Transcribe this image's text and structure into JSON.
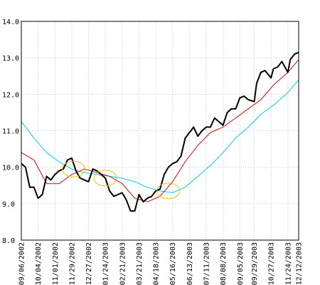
{
  "chart_data": {
    "type": "line",
    "title": "",
    "xlabel": "",
    "ylabel": "",
    "ylim": [
      8.0,
      14.0
    ],
    "y_ticks": [
      "8.0",
      "9.0",
      "10.0",
      "11.0",
      "12.0",
      "13.0",
      "14.0"
    ],
    "x_tick_labels": [
      "09/06/2002",
      "10/04/2002",
      "11/01/2002",
      "11/29/2002",
      "12/27/2002",
      "01/24/2003",
      "02/21/2003",
      "03/21/2003",
      "04/18/2003",
      "05/16/2003",
      "06/13/2003",
      "07/11/2003",
      "08/08/2003",
      "09/05/2003",
      "09/29/2003",
      "10/27/2003",
      "11/24/2003",
      "12/12/2003"
    ],
    "grid": true,
    "colors": {
      "price": "#000000",
      "ma_short": "#e00000",
      "ma_long": "#00d0e8",
      "highlight": "#f0c000",
      "grid": "#c8c8c8"
    },
    "series": [
      {
        "key": "price",
        "x": [
          "09/06/2002",
          "09/13/2002",
          "09/20/2002",
          "09/27/2002",
          "10/04/2002",
          "10/11/2002",
          "10/18/2002",
          "10/25/2002",
          "11/01/2002",
          "11/08/2002",
          "11/15/2002",
          "11/22/2002",
          "11/29/2002",
          "12/06/2002",
          "12/13/2002",
          "12/20/2002",
          "12/27/2002",
          "01/03/2003",
          "01/10/2003",
          "01/17/2003",
          "01/24/2003",
          "01/31/2003",
          "02/07/2003",
          "02/14/2003",
          "02/21/2003",
          "02/28/2003",
          "03/07/2003",
          "03/14/2003",
          "03/21/2003",
          "03/28/2003",
          "04/04/2003",
          "04/11/2003",
          "04/18/2003",
          "04/25/2003",
          "05/02/2003",
          "05/09/2003",
          "05/16/2003",
          "05/23/2003",
          "05/30/2003",
          "06/06/2003",
          "06/13/2003",
          "06/20/2003",
          "06/27/2003",
          "07/04/2003",
          "07/11/2003",
          "07/18/2003",
          "07/25/2003",
          "08/01/2003",
          "08/08/2003",
          "08/15/2003",
          "08/22/2003",
          "08/29/2003",
          "09/05/2003",
          "09/12/2003",
          "09/19/2003",
          "09/29/2003",
          "10/03/2003",
          "10/10/2003",
          "10/17/2003",
          "10/27/2003",
          "10/31/2003",
          "11/07/2003",
          "11/14/2003",
          "11/24/2003",
          "11/28/2003",
          "12/05/2003",
          "12/12/2003"
        ],
        "values": [
          10.1,
          10.0,
          9.45,
          9.45,
          9.15,
          9.25,
          9.75,
          9.65,
          9.8,
          9.9,
          9.95,
          10.2,
          10.25,
          9.9,
          9.7,
          9.65,
          9.6,
          9.95,
          9.9,
          9.8,
          9.7,
          9.35,
          9.2,
          9.25,
          9.3,
          9.1,
          8.8,
          8.8,
          9.25,
          9.05,
          9.15,
          9.2,
          9.35,
          9.4,
          9.8,
          10.0,
          10.1,
          10.15,
          10.3,
          10.8,
          10.95,
          11.1,
          10.85,
          11.0,
          11.1,
          11.1,
          11.35,
          11.25,
          11.15,
          11.5,
          11.6,
          11.6,
          11.9,
          11.95,
          11.85,
          11.8,
          12.3,
          12.6,
          12.65,
          12.45,
          12.7,
          12.75,
          12.9,
          12.6,
          12.95,
          13.1,
          13.15
        ]
      },
      {
        "key": "ma_short",
        "x": [
          "09/06/2002",
          "09/27/2002",
          "10/18/2002",
          "11/08/2002",
          "11/29/2002",
          "12/20/2002",
          "01/10/2003",
          "01/31/2003",
          "02/21/2003",
          "03/14/2003",
          "04/04/2003",
          "04/25/2003",
          "05/16/2003",
          "06/06/2003",
          "06/27/2003",
          "07/18/2003",
          "08/08/2003",
          "08/29/2003",
          "09/19/2003",
          "10/10/2003",
          "10/31/2003",
          "11/24/2003",
          "12/12/2003"
        ],
        "values": [
          10.4,
          10.2,
          9.55,
          9.55,
          9.8,
          9.95,
          9.85,
          9.75,
          9.55,
          9.15,
          9.05,
          9.2,
          9.6,
          10.15,
          10.6,
          10.95,
          11.1,
          11.35,
          11.6,
          11.85,
          12.25,
          12.6,
          12.95
        ]
      },
      {
        "key": "ma_long",
        "x": [
          "09/06/2002",
          "09/27/2002",
          "10/18/2002",
          "11/08/2002",
          "11/29/2002",
          "12/20/2002",
          "01/10/2003",
          "01/31/2003",
          "02/21/2003",
          "03/14/2003",
          "04/04/2003",
          "04/25/2003",
          "05/16/2003",
          "06/06/2003",
          "06/27/2003",
          "07/18/2003",
          "08/08/2003",
          "08/29/2003",
          "09/19/2003",
          "10/10/2003",
          "10/31/2003",
          "11/24/2003",
          "12/12/2003"
        ],
        "values": [
          11.25,
          10.8,
          10.4,
          10.15,
          9.95,
          9.85,
          9.8,
          9.75,
          9.7,
          9.6,
          9.45,
          9.35,
          9.3,
          9.45,
          9.75,
          10.05,
          10.4,
          10.8,
          11.1,
          11.45,
          11.7,
          12.05,
          12.4
        ]
      }
    ],
    "highlights": [
      {
        "x": "12/02/2002",
        "y": 9.95
      },
      {
        "x": "01/24/2003",
        "y": 9.7
      },
      {
        "x": "05/09/2003",
        "y": 9.35
      }
    ]
  }
}
